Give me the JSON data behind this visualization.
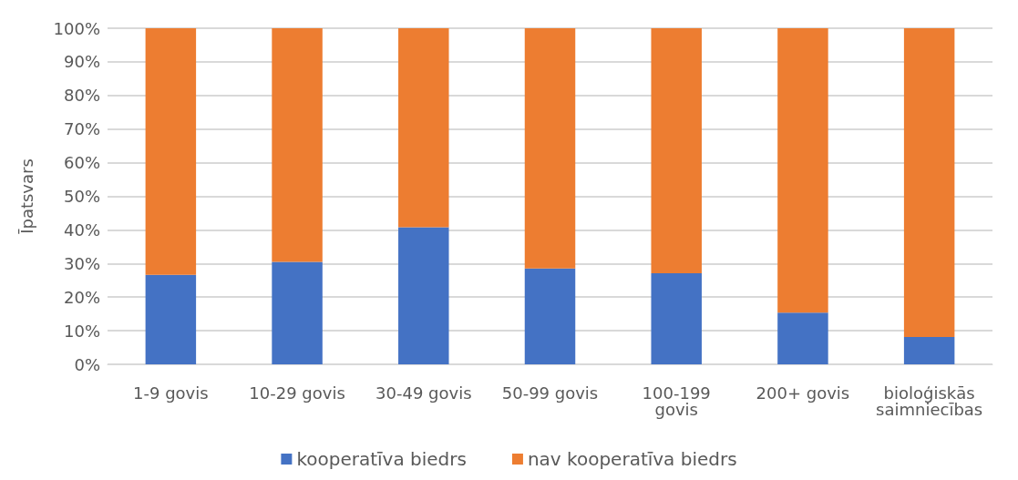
{
  "chart_data": {
    "type": "bar",
    "stacked": true,
    "ylabel": "Īpatsvars",
    "categories": [
      "1-9 govis",
      "10-29 govis",
      "30-49 govis",
      "50-99 govis",
      "100-199 govis",
      "200+ govis",
      "bioloģiskās saimniecības"
    ],
    "series": [
      {
        "name": "kooperatīva biedrs",
        "color": "#4472c4",
        "values": [
          26.6,
          30.5,
          40.8,
          28.5,
          27.1,
          15.4,
          8.1
        ]
      },
      {
        "name": "nav kooperatīva biedrs",
        "color": "#ed7d31",
        "values": [
          73.4,
          69.5,
          59.2,
          71.5,
          72.9,
          84.6,
          91.9
        ]
      }
    ],
    "ylim": [
      0,
      100
    ],
    "yticks": [
      {
        "value": 0,
        "label": "0%"
      },
      {
        "value": 10,
        "label": "10%"
      },
      {
        "value": 20,
        "label": "20%"
      },
      {
        "value": 30,
        "label": "30%"
      },
      {
        "value": 40,
        "label": "40%"
      },
      {
        "value": 50,
        "label": "50%"
      },
      {
        "value": 60,
        "label": "60%"
      },
      {
        "value": 70,
        "label": "70%"
      },
      {
        "value": 80,
        "label": "80%"
      },
      {
        "value": 90,
        "label": "90%"
      },
      {
        "value": 100,
        "label": "100%"
      }
    ],
    "grid": "y",
    "legend": "bottom"
  }
}
